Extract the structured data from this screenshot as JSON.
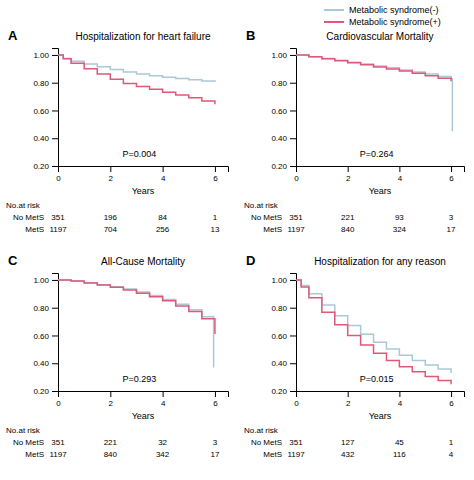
{
  "chart_data": [
    {
      "type": "step",
      "title": "Hospitalization for heart failure",
      "annotations": [
        "A",
        "P=0.004"
      ],
      "xlabel": "Years",
      "xlim": [
        0,
        6.5
      ],
      "xticks": [
        0,
        2,
        4,
        6
      ],
      "ylim": [
        0.2,
        1.05
      ],
      "yticks": [
        {
          "value": 0.2,
          "label": "0.20"
        },
        {
          "value": 0.4,
          "label": "0.40"
        },
        {
          "value": 0.6,
          "label": "0.60"
        },
        {
          "value": 0.8,
          "label": "0.80"
        },
        {
          "value": 1.0,
          "label": "1.00"
        }
      ],
      "legend": "upper right",
      "series": [
        {
          "name": "Metabolic syndrome(-)",
          "color": "#aac8d8",
          "x": [
            0,
            0.2,
            0.5,
            1.0,
            1.5,
            2.0,
            2.5,
            3.0,
            3.5,
            4.0,
            4.5,
            5.0,
            5.5,
            6.0
          ],
          "values": [
            1.0,
            0.975,
            0.955,
            0.935,
            0.915,
            0.895,
            0.878,
            0.862,
            0.85,
            0.84,
            0.83,
            0.822,
            0.812,
            0.805
          ]
        },
        {
          "name": "Metabolic syndrome(+)",
          "color": "#e05878",
          "x": [
            0,
            0.2,
            0.5,
            1.0,
            1.5,
            2.0,
            2.5,
            3.0,
            3.5,
            4.0,
            4.5,
            5.0,
            5.5,
            6.0
          ],
          "values": [
            1.0,
            0.972,
            0.94,
            0.9,
            0.862,
            0.825,
            0.795,
            0.772,
            0.752,
            0.732,
            0.712,
            0.692,
            0.668,
            0.645
          ]
        }
      ],
      "at_risk": {
        "header": "No.at risk",
        "x": [
          0,
          2,
          4,
          6
        ],
        "rows": [
          {
            "label": "No MetS",
            "values": [
              351,
              196,
              84,
              1
            ]
          },
          {
            "label": "MetS",
            "values": [
              1197,
              704,
              256,
              13
            ]
          }
        ]
      }
    },
    {
      "type": "step",
      "title": "Cardiovascular Mortality",
      "annotations": [
        "B",
        "P=0.264"
      ],
      "xlabel": "Years",
      "xlim": [
        0,
        6.5
      ],
      "xticks": [
        0,
        2,
        4,
        6
      ],
      "ylim": [
        0.2,
        1.05
      ],
      "yticks": [
        {
          "value": 0.2,
          "label": "0.20"
        },
        {
          "value": 0.4,
          "label": "0.40"
        },
        {
          "value": 0.6,
          "label": "0.60"
        },
        {
          "value": 0.8,
          "label": "0.80"
        },
        {
          "value": 1.0,
          "label": "1.00"
        }
      ],
      "series": [
        {
          "color": "#aac8d8",
          "x": [
            0,
            0.5,
            1.0,
            1.5,
            2.0,
            2.5,
            3.0,
            3.5,
            4.0,
            4.5,
            5.0,
            5.5,
            6.0,
            6.05
          ],
          "values": [
            1.0,
            0.987,
            0.974,
            0.961,
            0.948,
            0.934,
            0.921,
            0.907,
            0.892,
            0.878,
            0.863,
            0.845,
            0.828,
            0.45
          ]
        },
        {
          "color": "#e05878",
          "x": [
            0,
            0.5,
            1.0,
            1.5,
            2.0,
            2.5,
            3.0,
            3.5,
            4.0,
            4.5,
            5.0,
            5.5,
            6.0
          ],
          "values": [
            1.0,
            0.987,
            0.973,
            0.958,
            0.943,
            0.929,
            0.914,
            0.899,
            0.884,
            0.869,
            0.85,
            0.832,
            0.81
          ]
        }
      ],
      "at_risk": {
        "header": "No.at risk",
        "x": [
          0,
          2,
          4,
          6
        ],
        "rows": [
          {
            "label": "No MetS",
            "values": [
              351,
              221,
              93,
              3
            ]
          },
          {
            "label": "MetS",
            "values": [
              1197,
              840,
              324,
              17
            ]
          }
        ]
      }
    },
    {
      "type": "step",
      "title": "All-Cause Mortality",
      "annotations": [
        "C",
        "P=0.293"
      ],
      "xlabel": "Years",
      "xlim": [
        0,
        6.5
      ],
      "xticks": [
        0,
        2,
        4,
        6
      ],
      "ylim": [
        0.2,
        1.05
      ],
      "yticks": [
        {
          "value": 0.2,
          "label": "0.20"
        },
        {
          "value": 0.4,
          "label": "0.40"
        },
        {
          "value": 0.6,
          "label": "0.60"
        },
        {
          "value": 0.8,
          "label": "0.80"
        },
        {
          "value": 1.0,
          "label": "1.00"
        }
      ],
      "series": [
        {
          "color": "#aac8d8",
          "x": [
            0,
            0.5,
            1.0,
            1.5,
            2.0,
            2.5,
            3.0,
            3.5,
            4.0,
            4.5,
            5.0,
            5.5,
            5.95,
            5.95
          ],
          "values": [
            1.0,
            0.992,
            0.98,
            0.966,
            0.951,
            0.934,
            0.913,
            0.888,
            0.86,
            0.825,
            0.785,
            0.735,
            0.62,
            0.37
          ]
        },
        {
          "color": "#e05878",
          "x": [
            0,
            0.5,
            1.0,
            1.5,
            2.0,
            2.5,
            3.0,
            3.5,
            4.0,
            4.5,
            5.0,
            5.5,
            6.0
          ],
          "values": [
            1.0,
            0.992,
            0.978,
            0.963,
            0.947,
            0.928,
            0.905,
            0.879,
            0.85,
            0.812,
            0.772,
            0.72,
            0.61
          ]
        }
      ],
      "at_risk": {
        "header": "No.at risk",
        "x": [
          0,
          2,
          4,
          6
        ],
        "rows": [
          {
            "label": "No MetS",
            "values": [
              351,
              221,
              32,
              3
            ]
          },
          {
            "label": "MetS",
            "values": [
              1197,
              840,
              342,
              17
            ]
          }
        ]
      }
    },
    {
      "type": "step",
      "title": "Hospitalization for any reason",
      "annotations": [
        "D",
        "P=0.015"
      ],
      "xlabel": "Years",
      "xlim": [
        0,
        6.5
      ],
      "xticks": [
        0,
        2,
        4,
        6
      ],
      "ylim": [
        0.2,
        1.05
      ],
      "yticks": [
        {
          "value": 0.2,
          "label": "0.20"
        },
        {
          "value": 0.4,
          "label": "0.40"
        },
        {
          "value": 0.6,
          "label": "0.60"
        },
        {
          "value": 0.8,
          "label": "0.80"
        },
        {
          "value": 1.0,
          "label": "1.00"
        }
      ],
      "series": [
        {
          "color": "#aac8d8",
          "x": [
            0,
            0.2,
            0.5,
            1.0,
            1.5,
            2.0,
            2.5,
            3.0,
            3.5,
            4.0,
            4.5,
            5.0,
            5.5,
            6.0
          ],
          "values": [
            1.0,
            0.96,
            0.9,
            0.82,
            0.742,
            0.672,
            0.608,
            0.552,
            0.502,
            0.458,
            0.42,
            0.388,
            0.358,
            0.33
          ]
        },
        {
          "color": "#e05878",
          "x": [
            0,
            0.2,
            0.5,
            1.0,
            1.5,
            2.0,
            2.5,
            3.0,
            3.5,
            4.0,
            4.5,
            5.0,
            5.5,
            6.0
          ],
          "values": [
            1.0,
            0.95,
            0.872,
            0.768,
            0.678,
            0.6,
            0.532,
            0.472,
            0.42,
            0.375,
            0.338,
            0.305,
            0.275,
            0.248
          ]
        }
      ],
      "at_risk": {
        "header": "No.at risk",
        "x": [
          0,
          2,
          4,
          6
        ],
        "rows": [
          {
            "label": "No MetS",
            "values": [
              351,
              127,
              45,
              1
            ]
          },
          {
            "label": "MetS",
            "values": [
              1197,
              432,
              116,
              4
            ]
          }
        ]
      }
    }
  ]
}
